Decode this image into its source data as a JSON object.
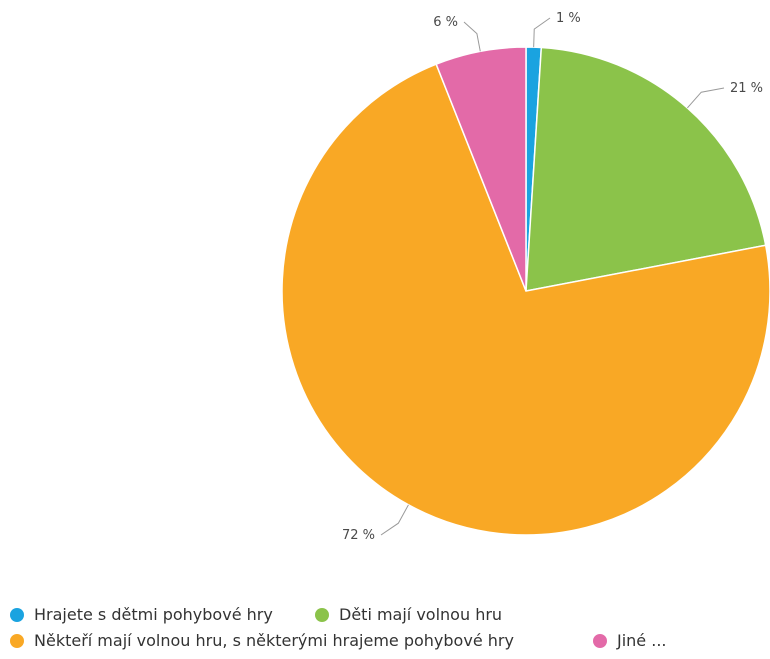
{
  "chart_data": {
    "type": "pie",
    "title": "",
    "categories": [
      "Hrajete s dětmi pohybové hry",
      "Děti mají volnou hru",
      "Někteří mají volnou hru, s některými hrajeme pohybové hry",
      "Jiné ..."
    ],
    "values": [
      1,
      21,
      72,
      6
    ],
    "value_labels": [
      "1 %",
      "21 %",
      "72 %",
      "6 %"
    ],
    "colors": [
      "#1aa3e0",
      "#8bc34a",
      "#f9a825",
      "#e36aa8"
    ],
    "legend_position": "bottom-left"
  }
}
